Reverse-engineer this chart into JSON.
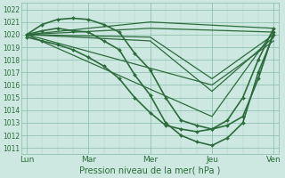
{
  "title": "Pression niveau de la mer( hPa )",
  "bg_color": "#cce8e0",
  "grid_major_color": "#88bbaa",
  "grid_minor_color": "#aad4c8",
  "line_color": "#2d6b3c",
  "xlabels": [
    "Lun",
    "Mar",
    "Mer",
    "Jeu",
    "Ven"
  ],
  "xtick_positions": [
    0,
    24,
    48,
    72,
    96
  ],
  "ylim": [
    1010.5,
    1022.5
  ],
  "yticks": [
    1011,
    1012,
    1013,
    1014,
    1015,
    1016,
    1017,
    1018,
    1019,
    1020,
    1021,
    1022
  ],
  "lines": [
    {
      "x": [
        0,
        6,
        12,
        18,
        24,
        30,
        36,
        42,
        48,
        54,
        60,
        66,
        72,
        78,
        84,
        90,
        96
      ],
      "y": [
        1020.0,
        1020.8,
        1021.2,
        1021.3,
        1021.2,
        1020.8,
        1020.2,
        1018.5,
        1017.2,
        1015.0,
        1013.2,
        1012.8,
        1012.5,
        1012.8,
        1013.5,
        1016.5,
        1020.2
      ],
      "marker": true,
      "lw": 1.2
    },
    {
      "x": [
        0,
        6,
        12,
        18,
        24,
        30,
        36,
        42,
        48,
        54,
        60,
        66,
        72,
        78,
        84,
        90,
        96
      ],
      "y": [
        1020.0,
        1020.3,
        1020.5,
        1020.3,
        1020.2,
        1019.5,
        1018.8,
        1016.8,
        1015.2,
        1013.0,
        1012.0,
        1011.5,
        1011.2,
        1011.8,
        1013.0,
        1017.0,
        1020.0
      ],
      "marker": true,
      "lw": 1.2
    },
    {
      "x": [
        0,
        6,
        12,
        18,
        24,
        30,
        36,
        42,
        48,
        54,
        60,
        66,
        72,
        78,
        84,
        90,
        96
      ],
      "y": [
        1019.8,
        1019.5,
        1019.2,
        1018.8,
        1018.2,
        1017.5,
        1016.5,
        1015.0,
        1013.8,
        1012.8,
        1012.5,
        1012.3,
        1012.5,
        1013.2,
        1015.0,
        1018.0,
        1020.5
      ],
      "marker": true,
      "lw": 1.2
    },
    {
      "x": [
        0,
        48,
        96
      ],
      "y": [
        1020.0,
        1021.0,
        1020.5
      ],
      "marker": false,
      "lw": 0.9
    },
    {
      "x": [
        0,
        48,
        96
      ],
      "y": [
        1020.0,
        1020.5,
        1020.2
      ],
      "marker": false,
      "lw": 0.9
    },
    {
      "x": [
        0,
        48,
        72,
        96
      ],
      "y": [
        1020.0,
        1019.8,
        1016.5,
        1020.0
      ],
      "marker": false,
      "lw": 0.9
    },
    {
      "x": [
        0,
        48,
        72,
        96
      ],
      "y": [
        1020.0,
        1019.5,
        1015.5,
        1019.8
      ],
      "marker": false,
      "lw": 0.9
    },
    {
      "x": [
        0,
        72,
        96
      ],
      "y": [
        1020.0,
        1013.5,
        1020.3
      ],
      "marker": false,
      "lw": 0.9
    },
    {
      "x": [
        0,
        72,
        96
      ],
      "y": [
        1020.0,
        1016.0,
        1019.5
      ],
      "marker": false,
      "lw": 0.9
    }
  ]
}
